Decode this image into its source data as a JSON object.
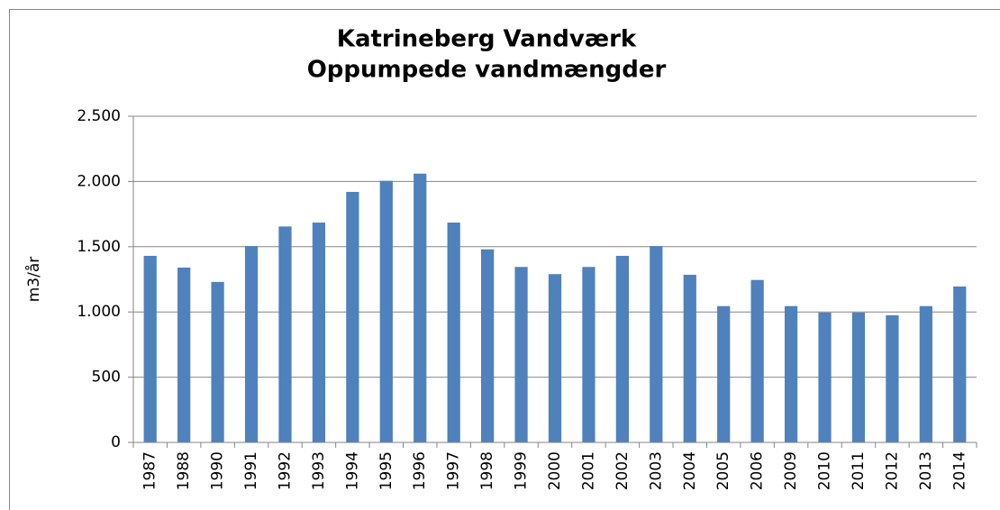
{
  "chart_data": {
    "type": "bar",
    "title": [
      "Katrineberg Vandværk",
      "Oppumpede vandmængder"
    ],
    "ylabel": "m3/år",
    "categories": [
      "1987",
      "1988",
      "1990",
      "1991",
      "1992",
      "1993",
      "1994",
      "1995",
      "1996",
      "1997",
      "1998",
      "1999",
      "2000",
      "2001",
      "2002",
      "2003",
      "2004",
      "2005",
      "2006",
      "2009",
      "2010",
      "2011",
      "2012",
      "2013",
      "2014"
    ],
    "values": [
      1430,
      1340,
      1230,
      1505,
      1655,
      1685,
      1920,
      2005,
      2060,
      1685,
      1480,
      1345,
      1290,
      1345,
      1430,
      1505,
      1285,
      1045,
      1245,
      1045,
      995,
      995,
      975,
      1045,
      1195
    ],
    "color": "#4f81bd",
    "ylim": [
      0,
      2500
    ],
    "yticks": [
      0,
      500,
      {
        "value": 1000,
        "label": "1.000"
      },
      {
        "value": 1500,
        "label": "1.500"
      },
      {
        "value": 2000,
        "label": "2.000"
      },
      {
        "value": 2500,
        "label": "2.500"
      }
    ],
    "grid": true
  }
}
